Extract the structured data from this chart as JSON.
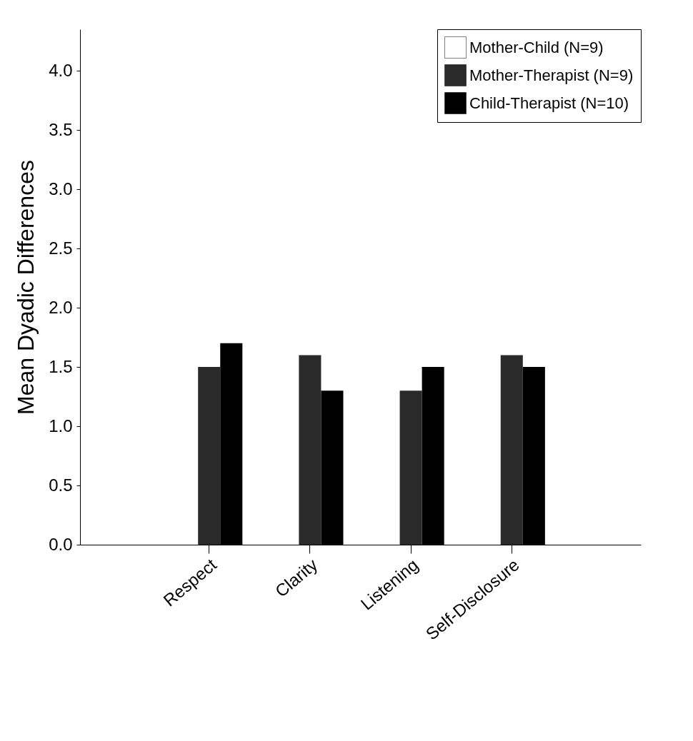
{
  "chart_data": {
    "type": "bar",
    "ylabel": "Mean Dyadic Differences",
    "categories": [
      "Respect",
      "Clarity",
      "Listening",
      "Self-Disclosure"
    ],
    "series": [
      {
        "name": "Mother-Child (N=9)",
        "color": "#ffffff",
        "values": [
          0,
          0,
          0,
          0
        ]
      },
      {
        "name": "Mother-Therapist (N=9)",
        "color": "#2a2a2a",
        "values": [
          1.5,
          1.6,
          1.3,
          1.6
        ]
      },
      {
        "name": "Child-Therapist (N=10)",
        "color": "#000000",
        "values": [
          1.7,
          1.3,
          1.5,
          1.5
        ]
      }
    ],
    "ylim": [
      0,
      4.35
    ],
    "yticks": [
      {
        "value": 0,
        "label": "0.0"
      },
      {
        "value": 0.5,
        "label": "0.5"
      },
      {
        "value": 1,
        "label": "1.0"
      },
      {
        "value": 1.5,
        "label": "1.5"
      },
      {
        "value": 2,
        "label": "2.0"
      },
      {
        "value": 2.5,
        "label": "2.5"
      },
      {
        "value": 3,
        "label": "3.0"
      },
      {
        "value": 3.5,
        "label": "3.5"
      },
      {
        "value": 4,
        "label": "4.0"
      }
    ],
    "grid": false,
    "legend": "top right"
  }
}
